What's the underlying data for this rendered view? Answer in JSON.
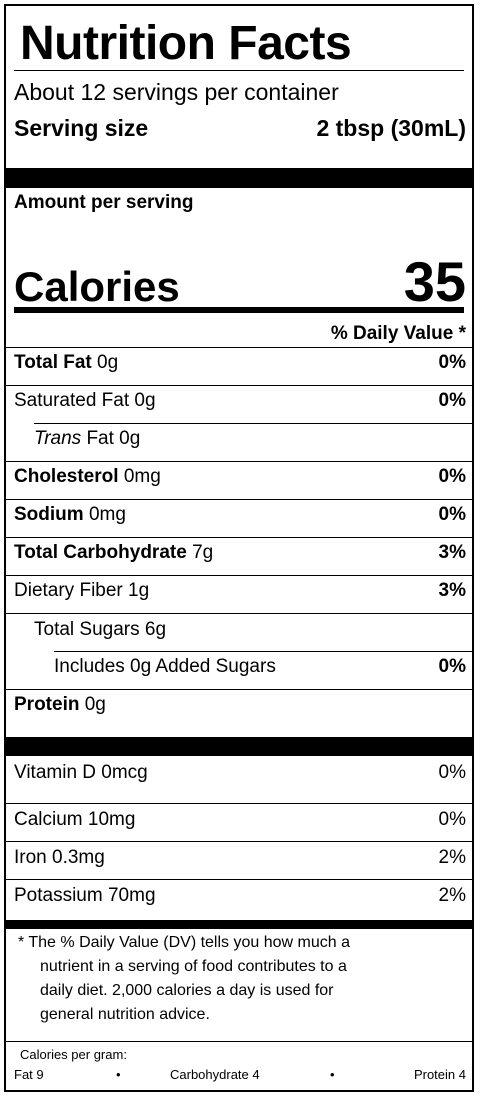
{
  "title": "Nutrition Facts",
  "servings_per_container": "About 12 servings per container",
  "serving_size": {
    "label": "Serving size",
    "value": "2 tbsp (30mL)"
  },
  "amount_per_serving": "Amount per serving",
  "calories": {
    "label": "Calories",
    "value": "35"
  },
  "daily_value_header": "% Daily Value *",
  "nutrients": {
    "total_fat": {
      "name": "Total Fat",
      "amount": "0g",
      "dv": "0%"
    },
    "saturated_fat": {
      "name": "Saturated Fat 0g",
      "dv": "0%"
    },
    "trans_fat": {
      "name": "Trans",
      "amount": "Fat 0g"
    },
    "cholesterol": {
      "name": "Cholesterol",
      "amount": "0mg",
      "dv": "0%"
    },
    "sodium": {
      "name": "Sodium",
      "amount": "0mg",
      "dv": "0%"
    },
    "total_carbohydrate": {
      "name": "Total Carbohydrate",
      "amount": "7g",
      "dv": "3%"
    },
    "dietary_fiber": {
      "name": "Dietary Fiber 1g",
      "dv": "3%"
    },
    "total_sugars": {
      "name": "Total Sugars 6g"
    },
    "added_sugars": {
      "name": "Includes 0g Added Sugars",
      "dv": "0%"
    },
    "protein": {
      "name": "Protein",
      "amount": "0g"
    }
  },
  "vitamins": {
    "vitamin_d": {
      "name": "Vitamin D 0mcg",
      "dv": "0%"
    },
    "calcium": {
      "name": "Calcium 10mg",
      "dv": "0%"
    },
    "iron": {
      "name": "Iron 0.3mg",
      "dv": "2%"
    },
    "potassium": {
      "name": "Potassium 70mg",
      "dv": "2%"
    }
  },
  "footnote": {
    "line1": "* The % Daily Value (DV) tells you how much a",
    "line2": "nutrient in a serving of food contributes to a",
    "line3": "daily diet. 2,000 calories a day is used for",
    "line4": "general nutrition advice."
  },
  "calories_per_gram": {
    "label": "Calories per gram:",
    "fat": "Fat 9",
    "carbohydrate": "Carbohydrate 4",
    "protein": "Protein 4",
    "separator": "•"
  }
}
